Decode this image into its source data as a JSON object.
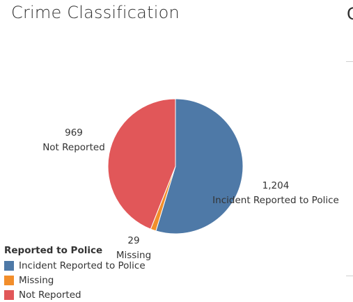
{
  "title": "Crime Classification",
  "right_edge_glyph": "C",
  "chart_data": {
    "type": "pie",
    "categories": [
      "Incident Reported to Police",
      "Missing",
      "Not Reported"
    ],
    "values": [
      1204,
      29,
      969
    ],
    "value_labels": [
      "1,204",
      "29",
      "969"
    ],
    "colors": [
      "#4e79a7",
      "#f28e2b",
      "#e15759"
    ]
  },
  "legend": {
    "title": "Reported to Police",
    "items": [
      {
        "label": "Incident Reported to Police",
        "color": "#4e79a7"
      },
      {
        "label": "Missing",
        "color": "#f28e2b"
      },
      {
        "label": "Not Reported",
        "color": "#e15759"
      }
    ]
  }
}
